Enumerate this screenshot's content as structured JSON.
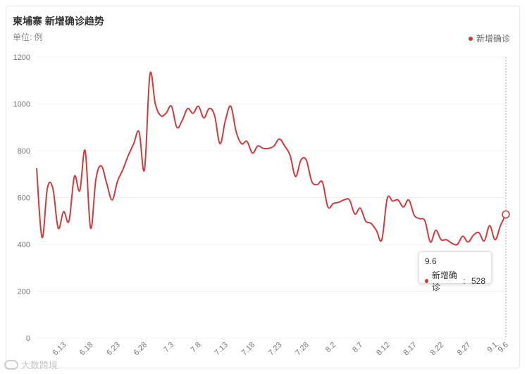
{
  "header": {
    "title": "柬埔寨 新增确诊趋势",
    "unit": "单位: 例"
  },
  "legend": {
    "label": "新增确诊",
    "color": "#d13a3a"
  },
  "tooltip": {
    "date": "9.6",
    "label": "新增确诊",
    "value": "528"
  },
  "watermark": {
    "text": "大数跨境"
  },
  "chart_data": {
    "type": "line",
    "title": "柬埔寨 新增确诊趋势",
    "ylabel": "单位: 例",
    "ylim": [
      0,
      1200
    ],
    "y_ticks": [
      0,
      200,
      400,
      600,
      800,
      1000,
      1200
    ],
    "x_ticks": [
      "6.13",
      "6.18",
      "6.23",
      "6.28",
      "7.3",
      "7.8",
      "7.13",
      "7.18",
      "7.23",
      "7.28",
      "8.2",
      "8.7",
      "8.12",
      "8.17",
      "8.22",
      "8.27",
      "9.1",
      "9.6"
    ],
    "grid": true,
    "legend_position": "top-right",
    "series": [
      {
        "name": "新增确诊",
        "color": "#d13a3a",
        "values": [
          725,
          430,
          640,
          640,
          470,
          540,
          500,
          690,
          630,
          800,
          470,
          680,
          735,
          660,
          590,
          670,
          720,
          780,
          830,
          880,
          720,
          1125,
          1000,
          950,
          960,
          990,
          900,
          930,
          980,
          960,
          990,
          940,
          980,
          950,
          830,
          930,
          990,
          880,
          830,
          840,
          790,
          820,
          810,
          810,
          820,
          850,
          820,
          780,
          690,
          760,
          760,
          670,
          655,
          665,
          560,
          575,
          580,
          590,
          590,
          530,
          555,
          500,
          490,
          460,
          420,
          595,
          585,
          590,
          560,
          590,
          525,
          510,
          500,
          410,
          460,
          420,
          420,
          405,
          400,
          435,
          410,
          440,
          450,
          415,
          480,
          420,
          480,
          528
        ]
      }
    ]
  }
}
